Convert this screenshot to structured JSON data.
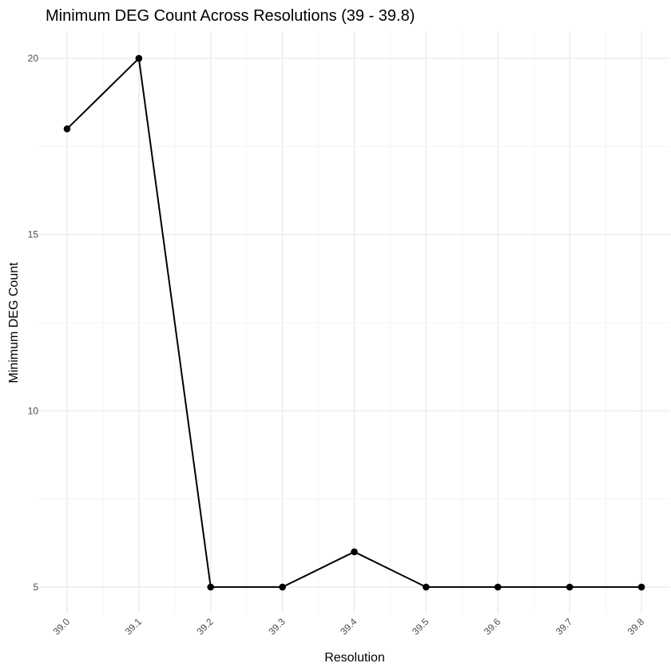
{
  "chart_data": {
    "type": "line",
    "title": "Minimum DEG Count Across Resolutions (39 - 39.8)",
    "xlabel": "Resolution",
    "ylabel": "Minimum DEG Count",
    "x": [
      39.0,
      39.1,
      39.2,
      39.3,
      39.4,
      39.5,
      39.6,
      39.7,
      39.8
    ],
    "x_tick_labels": [
      "39.0",
      "39.1",
      "39.2",
      "39.3",
      "39.4",
      "39.5",
      "39.6",
      "39.7",
      "39.8"
    ],
    "values": [
      18,
      20,
      5,
      5,
      6,
      5,
      5,
      5,
      5
    ],
    "y_ticks": [
      5,
      10,
      15,
      20
    ],
    "y_tick_labels": [
      "5",
      "10",
      "15",
      "20"
    ],
    "xlim": [
      38.96,
      39.84
    ],
    "ylim": [
      4.25,
      20.75
    ],
    "grid": true,
    "legend": "none",
    "line_color": "#000000",
    "point_color": "#000000",
    "grid_color": "#ebebeb"
  }
}
